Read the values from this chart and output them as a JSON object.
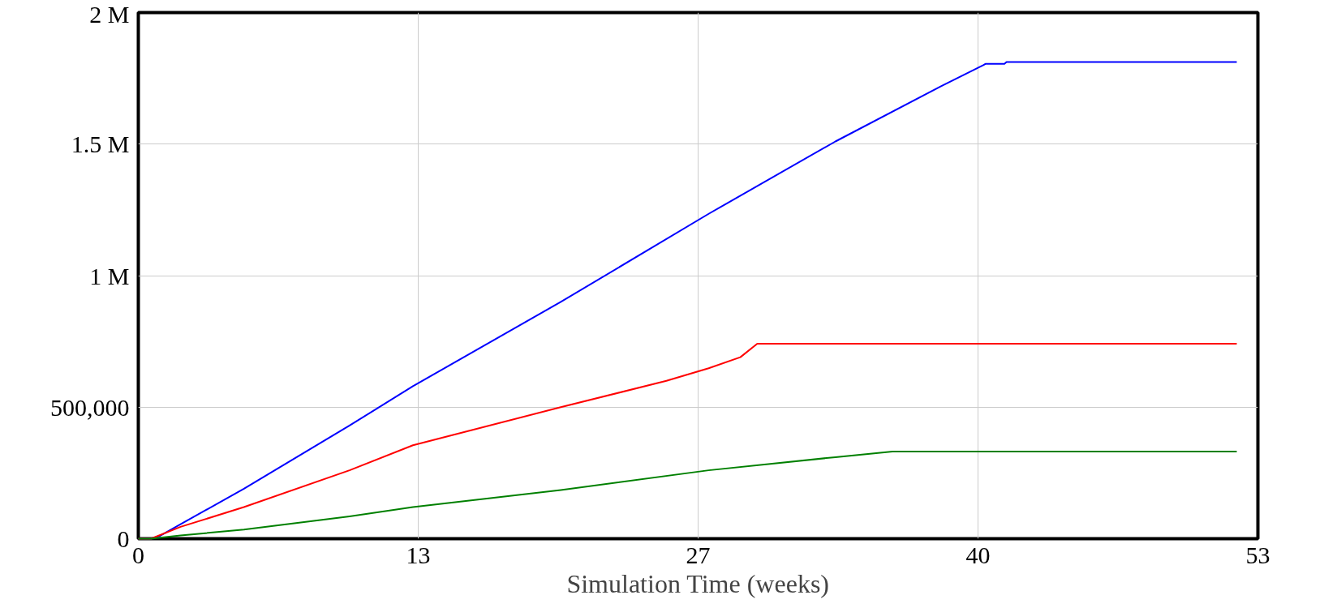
{
  "chart_data": {
    "type": "line",
    "xlabel": "Simulation Time (weeks)",
    "xlim": [
      0,
      53
    ],
    "xticks": [
      0,
      {
        "value": 13.25,
        "label": "13"
      },
      {
        "value": 26.5,
        "label": "27"
      },
      {
        "value": 39.75,
        "label": "40"
      },
      53
    ],
    "ylim": [
      0,
      2000000
    ],
    "yticks": [
      0,
      {
        "value": 500000,
        "label": "500,000"
      },
      {
        "value": 1000000,
        "label": "1 M"
      },
      {
        "value": 1500000,
        "label": "1.5 M"
      },
      {
        "value": 2000000,
        "label": "2 M"
      }
    ],
    "grid": true,
    "line_style": "solid",
    "marker": "none",
    "series": [
      {
        "color": "#0000ff",
        "x": [
          0,
          0.6,
          1,
          2,
          5,
          10,
          13,
          20,
          27,
          33,
          38,
          40,
          40.1,
          41,
          41.1,
          52
        ],
        "values": [
          0,
          0,
          10000,
          55000,
          190000,
          430000,
          580000,
          900000,
          1235000,
          1510000,
          1720000,
          1800000,
          1805000,
          1805000,
          1812000,
          1812000
        ]
      },
      {
        "color": "#ff0000",
        "x": [
          0,
          0.6,
          2,
          5,
          10,
          13,
          20,
          25,
          27,
          28.5,
          29.3,
          52
        ],
        "values": [
          0,
          0,
          45000,
          120000,
          260000,
          355000,
          500000,
          600000,
          648000,
          690000,
          741000,
          741000
        ]
      },
      {
        "color": "#008000",
        "x": [
          0,
          0.6,
          2,
          5,
          10,
          13,
          20,
          27,
          33,
          35.7,
          52
        ],
        "values": [
          0,
          0,
          12000,
          35000,
          85000,
          120000,
          185000,
          260000,
          310000,
          331000,
          331000
        ]
      }
    ]
  }
}
